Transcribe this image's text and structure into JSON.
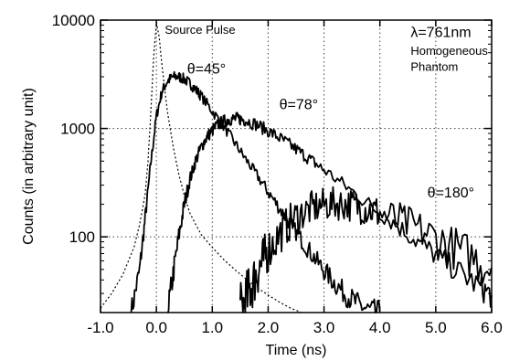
{
  "chart_data": {
    "type": "line",
    "title": "",
    "xlabel": "Time (ns)",
    "ylabel": "Counts (in arbitrary unit)",
    "xlim": [
      -1.0,
      6.0
    ],
    "ylim": [
      20,
      10000
    ],
    "yscale": "log",
    "grid": true,
    "x_ticks": [
      -1.0,
      0.0,
      1.0,
      2.0,
      3.0,
      4.0,
      5.0,
      6.0
    ],
    "x_tick_labels": [
      "-1.0",
      "0.0",
      "1.0",
      "2.0",
      "3.0",
      "4.0",
      "5.0",
      "6.0"
    ],
    "y_ticks": [
      100,
      1000,
      10000
    ],
    "y_tick_labels": [
      "100",
      "1000",
      "10000"
    ],
    "annotations": [
      {
        "text": "Source Pulse",
        "x": 0.15,
        "y": 7500
      },
      {
        "text": "λ=761nm",
        "x": 4.55,
        "y": 7000
      },
      {
        "text": "Homogeneous",
        "x": 4.55,
        "y": 4800
      },
      {
        "text": "Phantom",
        "x": 4.55,
        "y": 3400
      },
      {
        "text": "θ=45°",
        "x": 0.55,
        "y": 3200
      },
      {
        "text": "θ=78°",
        "x": 2.2,
        "y": 1500
      },
      {
        "text": "θ=180°",
        "x": 4.85,
        "y": 230
      }
    ],
    "series": [
      {
        "label_ref": "Source Pulse",
        "style": "dotted",
        "noise": 0,
        "x": [
          -1.0,
          -0.8,
          -0.6,
          -0.4,
          -0.3,
          -0.2,
          -0.15,
          -0.1,
          -0.05,
          0.0,
          0.05,
          0.1,
          0.15,
          0.2,
          0.3,
          0.4,
          0.5,
          0.6,
          0.8,
          1.0,
          1.2,
          1.4,
          1.6,
          1.8,
          2.0,
          2.2,
          2.4,
          2.6
        ],
        "y": [
          22,
          30,
          45,
          80,
          130,
          250,
          500,
          1400,
          4500,
          9500,
          7000,
          3800,
          2300,
          1400,
          680,
          380,
          240,
          165,
          105,
          80,
          62,
          50,
          41,
          34,
          29,
          25,
          22,
          20
        ]
      },
      {
        "label_ref": "θ=45°",
        "style": "solid",
        "noise": 0.05,
        "x": [
          -0.45,
          -0.3,
          -0.2,
          -0.1,
          0.0,
          0.1,
          0.2,
          0.3,
          0.4,
          0.5,
          0.6,
          0.7,
          0.8,
          1.0,
          1.2,
          1.4,
          1.6,
          1.8,
          2.0,
          2.2,
          2.4,
          2.6,
          2.8,
          3.0,
          3.2,
          3.4,
          3.6,
          3.8,
          4.0
        ],
        "y": [
          20,
          50,
          150,
          480,
          1300,
          2200,
          2750,
          3000,
          3000,
          2850,
          2600,
          2300,
          2000,
          1450,
          1050,
          740,
          520,
          370,
          260,
          185,
          130,
          93,
          67,
          49,
          37,
          29,
          24,
          21,
          20
        ]
      },
      {
        "label_ref": "θ=78°",
        "style": "solid",
        "noise": 0.06,
        "x": [
          0.2,
          0.3,
          0.4,
          0.5,
          0.6,
          0.7,
          0.8,
          0.9,
          1.0,
          1.1,
          1.2,
          1.3,
          1.4,
          1.5,
          1.6,
          1.8,
          2.0,
          2.2,
          2.4,
          2.6,
          2.8,
          3.0,
          3.4,
          3.8,
          4.2,
          4.6,
          5.0,
          5.4,
          5.8,
          6.0
        ],
        "y": [
          20,
          45,
          100,
          200,
          340,
          500,
          670,
          830,
          960,
          1080,
          1160,
          1210,
          1230,
          1220,
          1190,
          1080,
          950,
          820,
          700,
          590,
          495,
          415,
          290,
          200,
          140,
          97,
          68,
          48,
          34,
          29
        ]
      },
      {
        "label_ref": "θ=180°",
        "style": "solid",
        "noise": 0.12,
        "x": [
          1.5,
          1.6,
          1.7,
          1.8,
          1.9,
          2.0,
          2.2,
          2.4,
          2.6,
          2.8,
          3.0,
          3.2,
          3.4,
          3.6,
          3.8,
          4.0,
          4.4,
          4.8,
          5.2,
          5.6,
          6.0
        ],
        "y": [
          20,
          26,
          35,
          46,
          60,
          75,
          105,
          138,
          165,
          185,
          198,
          203,
          200,
          192,
          180,
          165,
          138,
          110,
          86,
          67,
          52
        ]
      }
    ]
  }
}
